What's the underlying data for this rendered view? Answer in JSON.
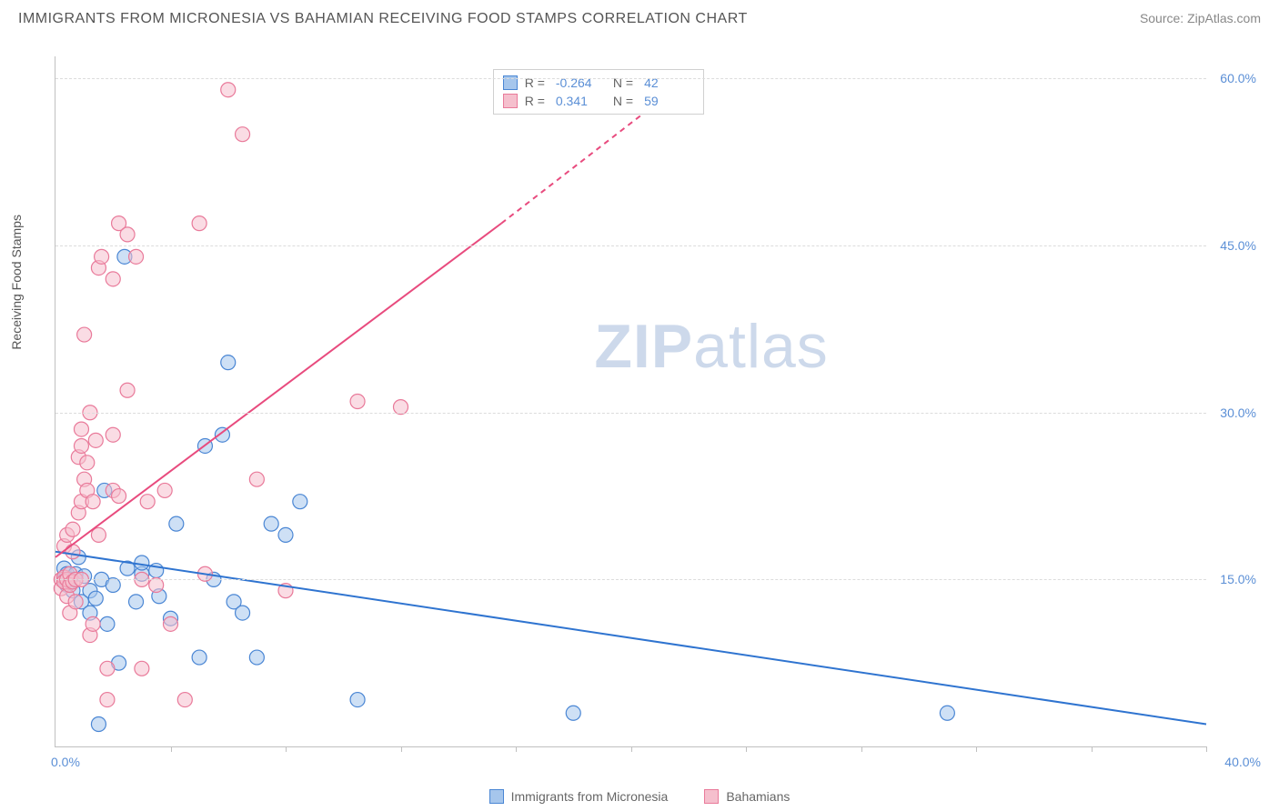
{
  "header": {
    "title": "IMMIGRANTS FROM MICRONESIA VS BAHAMIAN RECEIVING FOOD STAMPS CORRELATION CHART",
    "source_label": "Source:",
    "source_name": "ZipAtlas.com"
  },
  "watermark": {
    "part1": "ZIP",
    "part2": "atlas"
  },
  "axes": {
    "ylabel": "Receiving Food Stamps",
    "xmin": 0,
    "xmax": 40,
    "ymin": 0,
    "ymax": 62,
    "yticks": [
      15,
      30,
      45,
      60
    ],
    "ytick_labels": [
      "15.0%",
      "30.0%",
      "45.0%",
      "60.0%"
    ],
    "x_left_label": "0.0%",
    "x_right_label": "40.0%",
    "xtick_positions": [
      4,
      8,
      12,
      16,
      20,
      24,
      28,
      32,
      36,
      40
    ],
    "label_fontsize": 14,
    "tick_color": "#5b8fd6",
    "grid_color": "#dcdcdc",
    "axis_color": "#c0c0c0"
  },
  "styling": {
    "background": "#ffffff",
    "marker_radius": 8,
    "marker_stroke_width": 1.2,
    "marker_opacity": 0.55,
    "line_width": 2
  },
  "series": [
    {
      "id": "micronesia",
      "label": "Immigrants from Micronesia",
      "fill": "#a6c6ec",
      "stroke": "#4a86d4",
      "line_color": "#2f74d0",
      "r": -0.264,
      "n": 42,
      "trend": {
        "x1": 0,
        "y1": 17.5,
        "x2": 40,
        "y2": 2.0,
        "dashed": false
      },
      "points": [
        [
          0.3,
          15
        ],
        [
          0.3,
          16
        ],
        [
          0.4,
          14.5
        ],
        [
          0.4,
          15.5
        ],
        [
          0.5,
          15
        ],
        [
          0.6,
          14
        ],
        [
          0.7,
          15.5
        ],
        [
          0.8,
          17
        ],
        [
          0.9,
          13
        ],
        [
          1.0,
          15.3
        ],
        [
          1.2,
          12
        ],
        [
          1.2,
          14
        ],
        [
          1.4,
          13.3
        ],
        [
          1.5,
          2.0
        ],
        [
          1.6,
          15
        ],
        [
          1.7,
          23
        ],
        [
          1.8,
          11
        ],
        [
          2.0,
          14.5
        ],
        [
          2.2,
          7.5
        ],
        [
          2.4,
          44
        ],
        [
          2.5,
          16
        ],
        [
          2.8,
          13
        ],
        [
          3.0,
          15.5
        ],
        [
          3.0,
          16.5
        ],
        [
          3.5,
          15.8
        ],
        [
          3.6,
          13.5
        ],
        [
          4.0,
          11.5
        ],
        [
          4.2,
          20
        ],
        [
          5.0,
          8
        ],
        [
          5.2,
          27
        ],
        [
          5.5,
          15
        ],
        [
          5.8,
          28
        ],
        [
          6.0,
          34.5
        ],
        [
          6.2,
          13
        ],
        [
          6.5,
          12
        ],
        [
          7.0,
          8
        ],
        [
          7.5,
          20
        ],
        [
          8.0,
          19
        ],
        [
          8.5,
          22
        ],
        [
          10.5,
          4.2
        ],
        [
          18.0,
          3.0
        ],
        [
          31.0,
          3.0
        ]
      ]
    },
    {
      "id": "bahamians",
      "label": "Bahamians",
      "fill": "#f5bfcd",
      "stroke": "#e97a9a",
      "line_color": "#e84b7e",
      "r": 0.341,
      "n": 59,
      "trend": {
        "x1": 0,
        "y1": 17,
        "x2": 15.5,
        "y2": 47,
        "dashed_from_x": 15.5,
        "x3": 22,
        "y3": 60
      },
      "points": [
        [
          0.2,
          15
        ],
        [
          0.2,
          14.2
        ],
        [
          0.3,
          15.2
        ],
        [
          0.3,
          14.8
        ],
        [
          0.3,
          18
        ],
        [
          0.4,
          15
        ],
        [
          0.4,
          13.5
        ],
        [
          0.4,
          19
        ],
        [
          0.5,
          15.5
        ],
        [
          0.5,
          14.5
        ],
        [
          0.5,
          12
        ],
        [
          0.6,
          14.8
        ],
        [
          0.6,
          17.5
        ],
        [
          0.6,
          19.5
        ],
        [
          0.7,
          15
        ],
        [
          0.7,
          13
        ],
        [
          0.8,
          21
        ],
        [
          0.8,
          26
        ],
        [
          0.9,
          15
        ],
        [
          0.9,
          22
        ],
        [
          0.9,
          27
        ],
        [
          0.9,
          28.5
        ],
        [
          1.0,
          37
        ],
        [
          1.0,
          24
        ],
        [
          1.1,
          25.5
        ],
        [
          1.1,
          23
        ],
        [
          1.2,
          30
        ],
        [
          1.2,
          10
        ],
        [
          1.3,
          11
        ],
        [
          1.3,
          22
        ],
        [
          1.4,
          27.5
        ],
        [
          1.5,
          43
        ],
        [
          1.5,
          19
        ],
        [
          1.6,
          44
        ],
        [
          1.8,
          4.2
        ],
        [
          1.8,
          7
        ],
        [
          2.0,
          23
        ],
        [
          2.0,
          28
        ],
        [
          2.0,
          42
        ],
        [
          2.2,
          47
        ],
        [
          2.2,
          22.5
        ],
        [
          2.5,
          46
        ],
        [
          2.5,
          32
        ],
        [
          2.8,
          44
        ],
        [
          3.0,
          15
        ],
        [
          3.0,
          7
        ],
        [
          3.2,
          22
        ],
        [
          3.5,
          14.5
        ],
        [
          3.8,
          23
        ],
        [
          4.0,
          11
        ],
        [
          4.5,
          4.2
        ],
        [
          5.0,
          47
        ],
        [
          5.2,
          15.5
        ],
        [
          6.0,
          59
        ],
        [
          6.5,
          55
        ],
        [
          7.0,
          24
        ],
        [
          8.0,
          14
        ],
        [
          10.5,
          31
        ],
        [
          12.0,
          30.5
        ]
      ]
    }
  ],
  "legend_top": {
    "r_label": "R =",
    "n_label": "N ="
  }
}
